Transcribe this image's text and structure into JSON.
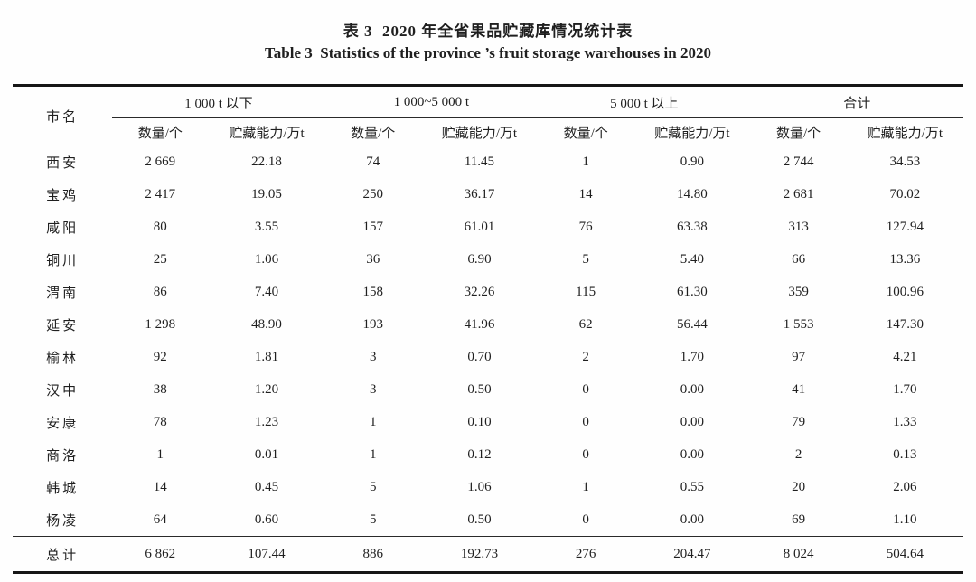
{
  "titles": {
    "zh": "表 3  2020 年全省果品贮藏库情况统计表",
    "en": "Table 3  Statistics of the province ’s fruit storage warehouses in 2020"
  },
  "table": {
    "city_header": "市名",
    "groups": [
      "1 000 t 以下",
      "1 000~5 000 t",
      "5 000 t 以上",
      "合计"
    ],
    "subheaders": [
      "数量/个",
      "贮藏能力/万t"
    ],
    "rows": [
      {
        "city": "西安",
        "values": [
          "2 669",
          "22.18",
          "74",
          "11.45",
          "1",
          "0.90",
          "2 744",
          "34.53"
        ]
      },
      {
        "city": "宝鸡",
        "values": [
          "2 417",
          "19.05",
          "250",
          "36.17",
          "14",
          "14.80",
          "2 681",
          "70.02"
        ]
      },
      {
        "city": "咸阳",
        "values": [
          "80",
          "3.55",
          "157",
          "61.01",
          "76",
          "63.38",
          "313",
          "127.94"
        ]
      },
      {
        "city": "铜川",
        "values": [
          "25",
          "1.06",
          "36",
          "6.90",
          "5",
          "5.40",
          "66",
          "13.36"
        ]
      },
      {
        "city": "渭南",
        "values": [
          "86",
          "7.40",
          "158",
          "32.26",
          "115",
          "61.30",
          "359",
          "100.96"
        ]
      },
      {
        "city": "延安",
        "values": [
          "1 298",
          "48.90",
          "193",
          "41.96",
          "62",
          "56.44",
          "1 553",
          "147.30"
        ]
      },
      {
        "city": "榆林",
        "values": [
          "92",
          "1.81",
          "3",
          "0.70",
          "2",
          "1.70",
          "97",
          "4.21"
        ]
      },
      {
        "city": "汉中",
        "values": [
          "38",
          "1.20",
          "3",
          "0.50",
          "0",
          "0.00",
          "41",
          "1.70"
        ]
      },
      {
        "city": "安康",
        "values": [
          "78",
          "1.23",
          "1",
          "0.10",
          "0",
          "0.00",
          "79",
          "1.33"
        ]
      },
      {
        "city": "商洛",
        "values": [
          "1",
          "0.01",
          "1",
          "0.12",
          "0",
          "0.00",
          "2",
          "0.13"
        ]
      },
      {
        "city": "韩城",
        "values": [
          "14",
          "0.45",
          "5",
          "1.06",
          "1",
          "0.55",
          "20",
          "2.06"
        ]
      },
      {
        "city": "杨凌",
        "values": [
          "64",
          "0.60",
          "5",
          "0.50",
          "0",
          "0.00",
          "69",
          "1.10"
        ]
      }
    ],
    "total_row": {
      "city": "总计",
      "values": [
        "6 862",
        "107.44",
        "886",
        "192.73",
        "276",
        "204.47",
        "8 024",
        "504.64"
      ]
    }
  }
}
